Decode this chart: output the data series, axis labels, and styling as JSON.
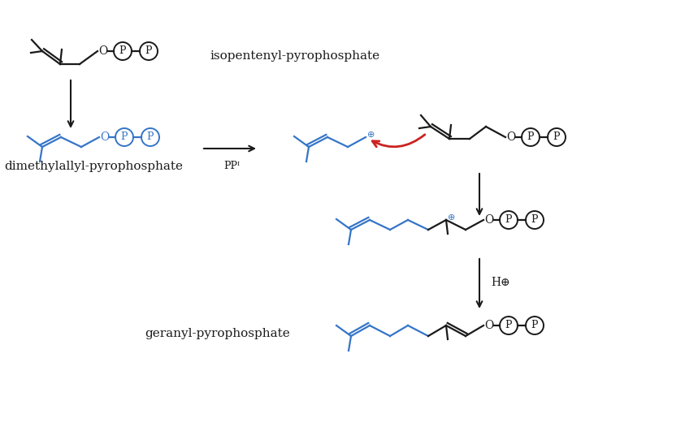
{
  "bg_color": "#ffffff",
  "black": "#1a1a1a",
  "blue": "#3575c8",
  "red": "#cc2222",
  "label_isopentenyl": "isopentenyl-pyrophosphate",
  "label_dimethylallyl": "dimethylallyl-pyrophosphate",
  "label_geranyl": "geranyl-pyrophosphate",
  "label_ppi": "PPᴵ",
  "label_hplus": "H⊕",
  "figsize": [
    8.43,
    5.31
  ],
  "dpi": 100
}
